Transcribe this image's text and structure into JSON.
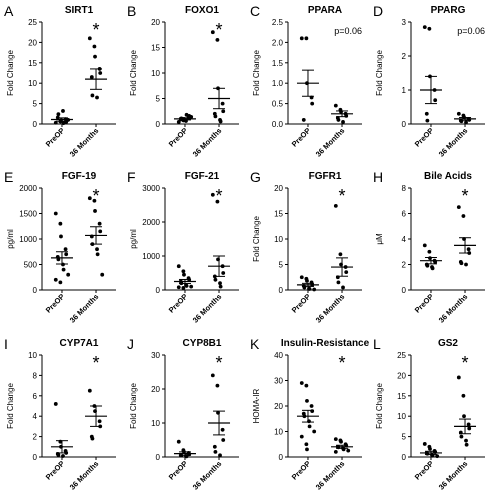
{
  "chart_data": [
    {
      "type": "scatter",
      "letter": "A",
      "title": "SIRT1",
      "ylabel": "Fold Change",
      "ylim": [
        0,
        25
      ],
      "yticks": [
        0,
        5,
        10,
        15,
        20,
        25
      ],
      "categories": [
        "PreOP",
        "36 Months"
      ],
      "annotation": "*",
      "annotation_group": 1,
      "series": [
        {
          "name": "PreOP",
          "values": [
            0.3,
            0.6,
            0.9,
            1.2,
            0.5,
            1.6,
            2.4,
            3.2,
            0.2,
            1.0
          ],
          "mean": 1.1,
          "sem": 0.4
        },
        {
          "name": "36 Months",
          "values": [
            21,
            19,
            16.5,
            13.5,
            12.5,
            11.5,
            7,
            6.5
          ],
          "mean": 11,
          "sem": 2.5
        }
      ]
    },
    {
      "type": "scatter",
      "letter": "B",
      "title": "FOXO1",
      "ylabel": "Fold Change",
      "ylim": [
        0,
        20
      ],
      "yticks": [
        0,
        5,
        10,
        15,
        20
      ],
      "categories": [
        "PreOP",
        "36 Months"
      ],
      "annotation": "*",
      "annotation_group": 1,
      "series": [
        {
          "name": "PreOP",
          "values": [
            0.4,
            0.7,
            1.0,
            1.3,
            1.6,
            0.9,
            1.1,
            0.6,
            1.8,
            1.4
          ],
          "mean": 1.0,
          "sem": 0.2
        },
        {
          "name": "36 Months",
          "values": [
            18,
            16.5,
            7,
            4,
            2.5,
            2,
            1.5,
            0.8,
            0.5
          ],
          "mean": 5,
          "sem": 2
        }
      ]
    },
    {
      "type": "scatter",
      "letter": "C",
      "title": "PPARA",
      "ylabel": "Fold Change",
      "ylim": [
        0,
        2.5
      ],
      "yticks": [
        0.0,
        0.5,
        1.0,
        1.5,
        2.0,
        2.5
      ],
      "categories": [
        "PreOP",
        "36 Months"
      ],
      "annotation": "p=0.06",
      "annotation_group": "top-right",
      "series": [
        {
          "name": "PreOP",
          "values": [
            2.1,
            2.1,
            1.0,
            0.65,
            0.5,
            0.1
          ],
          "mean": 1.0,
          "sem": 0.32
        },
        {
          "name": "36 Months",
          "values": [
            0.45,
            0.35,
            0.3,
            0.25,
            0.2,
            0.15,
            0.1,
            0.05
          ],
          "mean": 0.25,
          "sem": 0.07
        }
      ]
    },
    {
      "type": "scatter",
      "letter": "D",
      "title": "PPARG",
      "ylabel": "Fold Change",
      "ylim": [
        0,
        3
      ],
      "yticks": [
        0,
        1,
        2,
        3
      ],
      "categories": [
        "PreOP",
        "36 Months"
      ],
      "annotation": "p=0.06",
      "annotation_group": "top-right",
      "series": [
        {
          "name": "PreOP",
          "values": [
            2.85,
            2.8,
            1.4,
            1.0,
            0.7,
            0.3,
            0.1
          ],
          "mean": 1.0,
          "sem": 0.4
        },
        {
          "name": "36 Months",
          "values": [
            0.3,
            0.25,
            0.2,
            0.15,
            0.12,
            0.1,
            0.08,
            0.05
          ],
          "mean": 0.15,
          "sem": 0.04
        }
      ]
    },
    {
      "type": "scatter",
      "letter": "E",
      "title": "FGF-19",
      "ylabel": "pg/ml",
      "ylim": [
        0,
        2000
      ],
      "yticks": [
        0,
        500,
        1000,
        1500,
        2000
      ],
      "categories": [
        "PreOP",
        "36 Months"
      ],
      "annotation": "*",
      "annotation_group": 1,
      "series": [
        {
          "name": "PreOP",
          "values": [
            1500,
            1300,
            1050,
            800,
            700,
            650,
            600,
            500,
            400,
            300,
            200,
            150
          ],
          "mean": 630,
          "sem": 120
        },
        {
          "name": "36 Months",
          "values": [
            1800,
            1750,
            1550,
            1300,
            1150,
            1050,
            900,
            800,
            700,
            300
          ],
          "mean": 1070,
          "sem": 170
        }
      ]
    },
    {
      "type": "scatter",
      "letter": "F",
      "title": "FGF-21",
      "ylabel": "pg/ml",
      "ylim": [
        0,
        3000
      ],
      "yticks": [
        0,
        1000,
        2000,
        3000
      ],
      "categories": [
        "PreOP",
        "36 Months"
      ],
      "annotation": "*",
      "annotation_group": 1,
      "series": [
        {
          "name": "PreOP",
          "values": [
            700,
            550,
            450,
            350,
            300,
            250,
            200,
            150,
            120,
            100,
            80,
            60
          ],
          "mean": 250,
          "sem": 60
        },
        {
          "name": "36 Months",
          "values": [
            2800,
            2600,
            900,
            700,
            500,
            400,
            300,
            200,
            100
          ],
          "mean": 700,
          "sem": 300
        }
      ]
    },
    {
      "type": "scatter",
      "letter": "G",
      "title": "FGFR1",
      "ylabel": "Fold Change",
      "ylim": [
        0,
        20
      ],
      "yticks": [
        0,
        5,
        10,
        15,
        20
      ],
      "categories": [
        "PreOP",
        "36 Months"
      ],
      "annotation": "*",
      "annotation_group": 1,
      "series": [
        {
          "name": "PreOP",
          "values": [
            2.5,
            2.2,
            1.8,
            1.5,
            1.0,
            0.8,
            0.5,
            0.3,
            0.2,
            0.1
          ],
          "mean": 1.0,
          "sem": 0.3
        },
        {
          "name": "36 Months",
          "values": [
            16.5,
            7,
            5,
            4.5,
            3.5,
            2.5,
            1.5,
            0.5
          ],
          "mean": 4.5,
          "sem": 1.8
        }
      ]
    },
    {
      "type": "scatter",
      "letter": "H",
      "title": "Bile Acids",
      "ylabel": "μM",
      "ylim": [
        0,
        8
      ],
      "yticks": [
        0,
        2,
        4,
        6,
        8
      ],
      "categories": [
        "PreOP",
        "36 Months"
      ],
      "annotation": "*",
      "annotation_group": 1,
      "series": [
        {
          "name": "PreOP",
          "values": [
            3.5,
            3.0,
            2.5,
            2.3,
            2.2,
            2.0,
            1.9,
            1.8,
            1.7
          ],
          "mean": 2.3,
          "sem": 0.25
        },
        {
          "name": "36 Months",
          "values": [
            6.5,
            5.8,
            4.0,
            3.2,
            2.9,
            2.2,
            2.1,
            2.0
          ],
          "mean": 3.5,
          "sem": 0.6
        }
      ]
    },
    {
      "type": "scatter",
      "letter": "I",
      "title": "CYP7A1",
      "ylabel": "Fold Change",
      "ylim": [
        0,
        10
      ],
      "yticks": [
        0,
        2,
        4,
        6,
        8,
        10
      ],
      "categories": [
        "PreOP",
        "36 Months"
      ],
      "annotation": "*",
      "annotation_group": 1,
      "series": [
        {
          "name": "PreOP",
          "values": [
            5.2,
            1.5,
            1.0,
            0.6,
            0.4,
            0.3,
            0.2,
            0.1
          ],
          "mean": 1.0,
          "sem": 0.6
        },
        {
          "name": "36 Months",
          "values": [
            6.5,
            5,
            4.5,
            3.5,
            3,
            2,
            1.8
          ],
          "mean": 4,
          "sem": 1
        }
      ]
    },
    {
      "type": "scatter",
      "letter": "J",
      "title": "CYP8B1",
      "ylabel": "Fold Change",
      "ylim": [
        0,
        30
      ],
      "yticks": [
        0,
        10,
        20,
        30
      ],
      "categories": [
        "PreOP",
        "36 Months"
      ],
      "annotation": "*",
      "annotation_group": 1,
      "series": [
        {
          "name": "PreOP",
          "values": [
            4.5,
            2,
            1.5,
            1.2,
            0.8,
            0.5,
            0.4,
            0.3,
            0.2
          ],
          "mean": 1.0,
          "sem": 0.5
        },
        {
          "name": "36 Months",
          "values": [
            24,
            21,
            13,
            8,
            5,
            3,
            1.5,
            0.5
          ],
          "mean": 10,
          "sem": 3.5
        }
      ]
    },
    {
      "type": "scatter",
      "letter": "K",
      "title": "Insulin-Resistance",
      "ylabel": "HOMA-IR",
      "ylim": [
        0,
        40
      ],
      "yticks": [
        0,
        10,
        20,
        30,
        40
      ],
      "categories": [
        "PreOP",
        "36 Months"
      ],
      "annotation": "*",
      "annotation_group": 1,
      "series": [
        {
          "name": "PreOP",
          "values": [
            29,
            28,
            22,
            20,
            18,
            17,
            16,
            14,
            12,
            10,
            8,
            5,
            3
          ],
          "mean": 16,
          "sem": 2.3
        },
        {
          "name": "36 Months",
          "values": [
            7,
            6.5,
            6,
            5,
            4.5,
            4,
            3.8,
            3.5,
            3,
            2.5,
            2
          ],
          "mean": 4,
          "sem": 0.6
        }
      ]
    },
    {
      "type": "scatter",
      "letter": "L",
      "title": "GS2",
      "ylabel": "Fold Change",
      "ylim": [
        0,
        25
      ],
      "yticks": [
        0,
        5,
        10,
        15,
        20,
        25
      ],
      "categories": [
        "PreOP",
        "36 Months"
      ],
      "annotation": "*",
      "annotation_group": 1,
      "series": [
        {
          "name": "PreOP",
          "values": [
            3.2,
            2.5,
            2.0,
            1.5,
            1.2,
            1.0,
            0.8,
            0.5,
            0.3,
            0.2
          ],
          "mean": 1.0,
          "sem": 0.4
        },
        {
          "name": "36 Months",
          "values": [
            19.5,
            15,
            10,
            8,
            7,
            6,
            5,
            4,
            3
          ],
          "mean": 7.5,
          "sem": 1.8
        }
      ]
    }
  ]
}
